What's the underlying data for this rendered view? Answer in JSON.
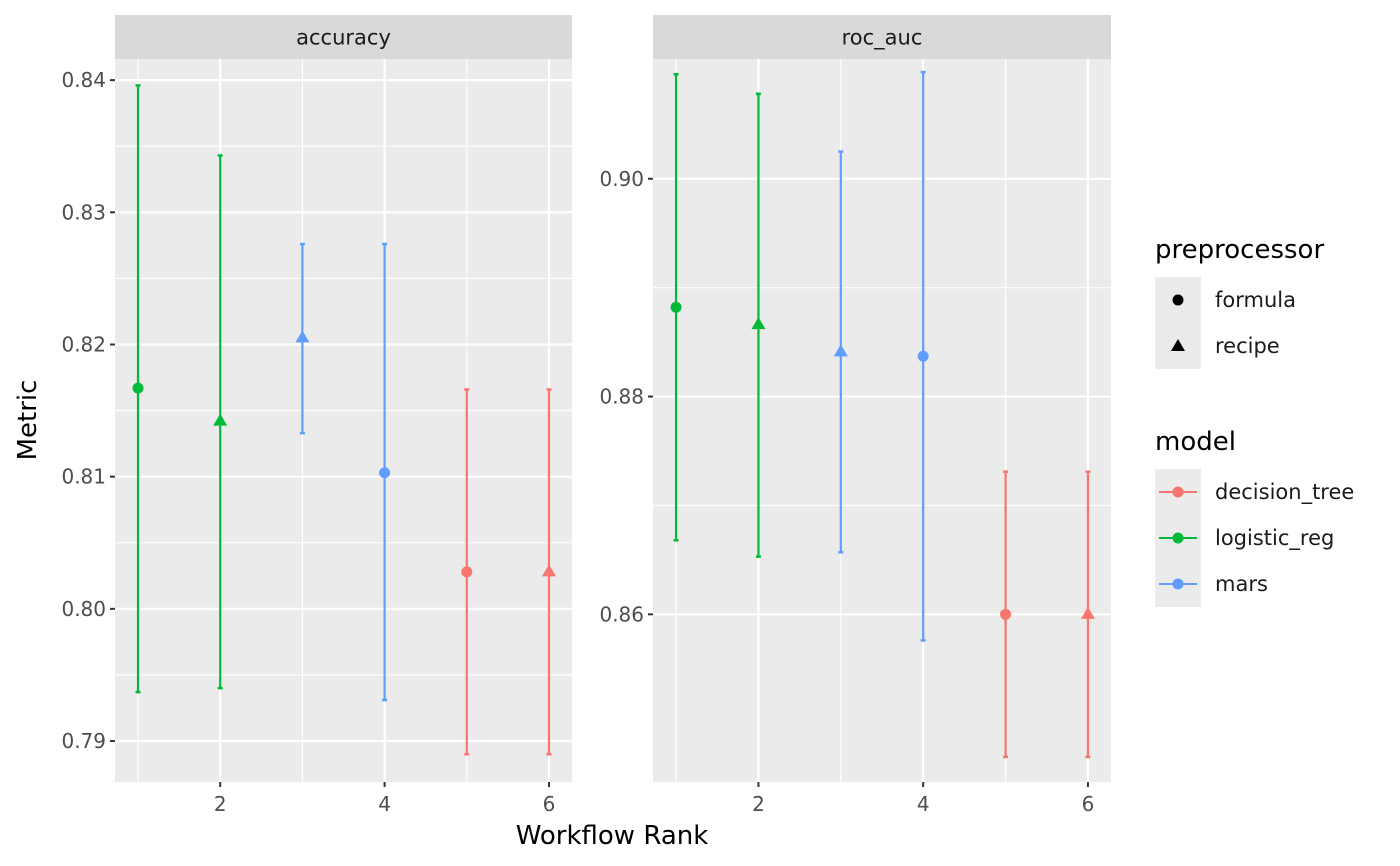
{
  "chart_data": {
    "type": "scatter",
    "xlabel": "Workflow Rank",
    "ylabel": "Metric",
    "x_ticks": [
      2,
      4,
      6
    ],
    "legends": {
      "preprocessor": {
        "title": "preprocessor",
        "entries": [
          {
            "label": "formula",
            "shape": "circle"
          },
          {
            "label": "recipe",
            "shape": "triangle"
          }
        ]
      },
      "model": {
        "title": "model",
        "entries": [
          {
            "label": "decision_tree",
            "color": "#F8766D"
          },
          {
            "label": "logistic_reg",
            "color": "#00BA38"
          },
          {
            "label": "mars",
            "color": "#619CFF"
          }
        ]
      }
    },
    "panels": [
      {
        "strip": "accuracy",
        "ylim": [
          0.7869,
          0.8416
        ],
        "y_ticks": [
          0.79,
          0.8,
          0.81,
          0.82,
          0.83,
          0.84
        ],
        "y_tick_labels": [
          "0.79",
          "0.80",
          "0.81",
          "0.82",
          "0.83",
          "0.84"
        ],
        "points": [
          {
            "rank": 1,
            "model": "logistic_reg",
            "preprocessor": "formula",
            "mean": 0.8167,
            "lower": 0.7937,
            "upper": 0.8396
          },
          {
            "rank": 2,
            "model": "logistic_reg",
            "preprocessor": "recipe",
            "mean": 0.8142,
            "lower": 0.794,
            "upper": 0.8343
          },
          {
            "rank": 3,
            "model": "mars",
            "preprocessor": "recipe",
            "mean": 0.8205,
            "lower": 0.8133,
            "upper": 0.8276
          },
          {
            "rank": 4,
            "model": "mars",
            "preprocessor": "formula",
            "mean": 0.8103,
            "lower": 0.7931,
            "upper": 0.8276
          },
          {
            "rank": 5,
            "model": "decision_tree",
            "preprocessor": "formula",
            "mean": 0.8028,
            "lower": 0.789,
            "upper": 0.8166
          },
          {
            "rank": 6,
            "model": "decision_tree",
            "preprocessor": "recipe",
            "mean": 0.8028,
            "lower": 0.789,
            "upper": 0.8166
          }
        ]
      },
      {
        "strip": "roc_auc",
        "ylim": [
          0.8446,
          0.911
        ],
        "y_ticks": [
          0.86,
          0.88,
          0.9
        ],
        "y_tick_labels": [
          "0.86",
          "0.88",
          "0.90"
        ],
        "points": [
          {
            "rank": 1,
            "model": "logistic_reg",
            "preprocessor": "formula",
            "mean": 0.8882,
            "lower": 0.8668,
            "upper": 0.9096
          },
          {
            "rank": 2,
            "model": "logistic_reg",
            "preprocessor": "recipe",
            "mean": 0.8866,
            "lower": 0.8653,
            "upper": 0.9078
          },
          {
            "rank": 3,
            "model": "mars",
            "preprocessor": "recipe",
            "mean": 0.8841,
            "lower": 0.8657,
            "upper": 0.9025
          },
          {
            "rank": 4,
            "model": "mars",
            "preprocessor": "formula",
            "mean": 0.8837,
            "lower": 0.8576,
            "upper": 0.9098
          },
          {
            "rank": 5,
            "model": "decision_tree",
            "preprocessor": "formula",
            "mean": 0.86,
            "lower": 0.8469,
            "upper": 0.8731
          },
          {
            "rank": 6,
            "model": "decision_tree",
            "preprocessor": "recipe",
            "mean": 0.86,
            "lower": 0.8469,
            "upper": 0.8731
          }
        ]
      }
    ]
  }
}
